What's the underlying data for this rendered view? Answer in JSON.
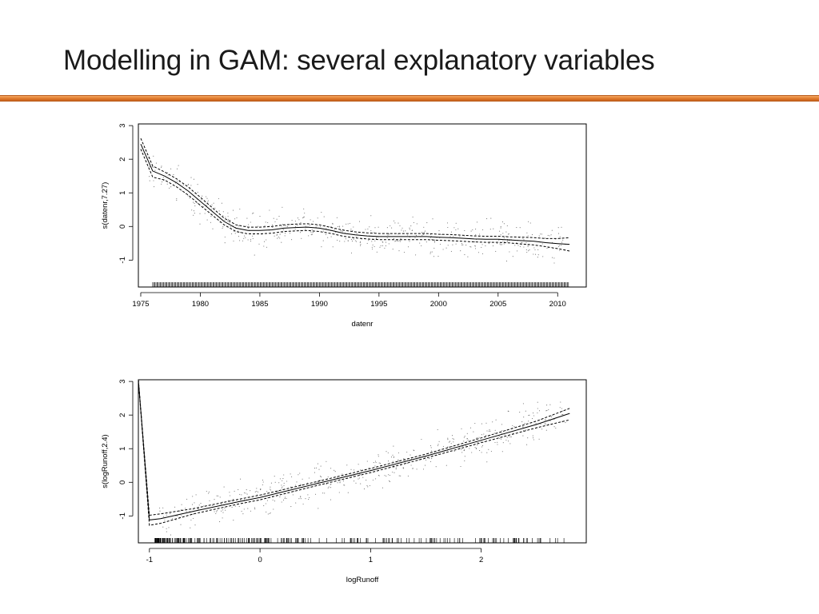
{
  "slide": {
    "title": "Modelling in GAM: several explanatory variables",
    "accent_color": "#e07a2c"
  },
  "chart_data": [
    {
      "type": "line",
      "xlabel": "datenr",
      "ylabel": "s(datenr,7.27)",
      "xlim": [
        1974.8,
        2012.4
      ],
      "ylim": [
        -1.8,
        3.05
      ],
      "xticks": [
        1975,
        1980,
        1985,
        1990,
        1995,
        2000,
        2005,
        2010
      ],
      "yticks": [
        -1,
        0,
        1,
        2,
        3
      ],
      "grid": false,
      "series": [
        {
          "role": "fit",
          "style": "solid",
          "x": [
            1975,
            1976,
            1977,
            1978,
            1979,
            1980,
            1981,
            1982,
            1983,
            1984,
            1985,
            1986,
            1987,
            1988,
            1989,
            1990,
            1991,
            1992,
            1993,
            1994,
            1995,
            1996,
            1997,
            1998,
            1999,
            2000,
            2001,
            2002,
            2003,
            2004,
            2005,
            2006,
            2007,
            2008,
            2009,
            2010,
            2011
          ],
          "y": [
            2.45,
            1.65,
            1.5,
            1.3,
            1.05,
            0.75,
            0.45,
            0.15,
            -0.05,
            -0.12,
            -0.12,
            -0.1,
            -0.05,
            -0.03,
            -0.02,
            -0.05,
            -0.12,
            -0.2,
            -0.25,
            -0.28,
            -0.3,
            -0.3,
            -0.3,
            -0.3,
            -0.3,
            -0.32,
            -0.33,
            -0.35,
            -0.37,
            -0.38,
            -0.38,
            -0.4,
            -0.42,
            -0.44,
            -0.48,
            -0.51,
            -0.53
          ]
        },
        {
          "role": "upper",
          "style": "dashed",
          "x": [
            1975,
            1976,
            1977,
            1978,
            1979,
            1980,
            1981,
            1982,
            1983,
            1984,
            1985,
            1986,
            1987,
            1988,
            1989,
            1990,
            1991,
            1992,
            1993,
            1994,
            1995,
            1996,
            1997,
            1998,
            1999,
            2000,
            2001,
            2002,
            2003,
            2004,
            2005,
            2006,
            2007,
            2008,
            2009,
            2010,
            2011
          ],
          "y": [
            2.62,
            1.8,
            1.62,
            1.42,
            1.17,
            0.87,
            0.56,
            0.25,
            0.05,
            -0.02,
            -0.02,
            0.0,
            0.05,
            0.07,
            0.08,
            0.05,
            -0.03,
            -0.11,
            -0.16,
            -0.19,
            -0.21,
            -0.21,
            -0.21,
            -0.21,
            -0.21,
            -0.23,
            -0.24,
            -0.26,
            -0.28,
            -0.29,
            -0.29,
            -0.31,
            -0.32,
            -0.33,
            -0.36,
            -0.36,
            -0.33
          ]
        },
        {
          "role": "lower",
          "style": "dashed",
          "x": [
            1975,
            1976,
            1977,
            1978,
            1979,
            1980,
            1981,
            1982,
            1983,
            1984,
            1985,
            1986,
            1987,
            1988,
            1989,
            1990,
            1991,
            1992,
            1993,
            1994,
            1995,
            1996,
            1997,
            1998,
            1999,
            2000,
            2001,
            2002,
            2003,
            2004,
            2005,
            2006,
            2007,
            2008,
            2009,
            2010,
            2011
          ],
          "y": [
            2.3,
            1.47,
            1.38,
            1.18,
            0.93,
            0.63,
            0.34,
            0.05,
            -0.15,
            -0.22,
            -0.22,
            -0.2,
            -0.15,
            -0.13,
            -0.12,
            -0.15,
            -0.21,
            -0.29,
            -0.34,
            -0.37,
            -0.39,
            -0.39,
            -0.39,
            -0.39,
            -0.39,
            -0.41,
            -0.42,
            -0.44,
            -0.46,
            -0.47,
            -0.47,
            -0.49,
            -0.52,
            -0.55,
            -0.6,
            -0.66,
            -0.73
          ]
        }
      ]
    },
    {
      "type": "line",
      "xlabel": "logRunoff",
      "ylabel": "s(logRunoff,2.4)",
      "xlim": [
        -1.1,
        2.95
      ],
      "ylim": [
        -1.8,
        3.05
      ],
      "xticks": [
        -1,
        0,
        1,
        2
      ],
      "yticks": [
        -1,
        0,
        1,
        2,
        3
      ],
      "grid": false,
      "series": [
        {
          "role": "fit",
          "style": "solid",
          "x": [
            -1.1,
            -1.0,
            -0.9,
            -0.6,
            -0.2,
            0.0,
            0.5,
            1.0,
            1.5,
            2.0,
            2.5,
            2.8
          ],
          "y": [
            3.05,
            -1.12,
            -1.08,
            -0.86,
            -0.58,
            -0.45,
            -0.05,
            0.35,
            0.78,
            1.25,
            1.72,
            2.05
          ]
        },
        {
          "role": "upper",
          "style": "dashed",
          "x": [
            -1.1,
            -1.0,
            -0.9,
            -0.6,
            -0.2,
            0.0,
            0.5,
            1.0,
            1.5,
            2.0,
            2.5,
            2.8
          ],
          "y": [
            3.05,
            -0.98,
            -0.94,
            -0.78,
            -0.51,
            -0.38,
            0.01,
            0.41,
            0.84,
            1.32,
            1.82,
            2.2
          ]
        },
        {
          "role": "lower",
          "style": "dashed",
          "x": [
            -1.1,
            -1.0,
            -0.9,
            -0.6,
            -0.2,
            0.0,
            0.5,
            1.0,
            1.5,
            2.0,
            2.5,
            2.8
          ],
          "y": [
            3.05,
            -1.28,
            -1.22,
            -0.94,
            -0.65,
            -0.52,
            -0.11,
            0.29,
            0.72,
            1.18,
            1.62,
            1.86
          ]
        }
      ]
    }
  ]
}
